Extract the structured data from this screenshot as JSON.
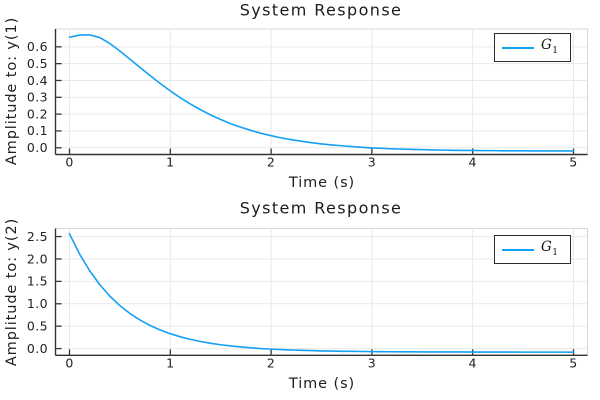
{
  "colors": {
    "background": "#ffffff",
    "series": "#14a0f6",
    "grid": "#e9e9e9",
    "frame": "#d6d6d6",
    "spine": "#333333",
    "tick_text": "#232323",
    "legend_border": "#2d2d2d"
  },
  "chart_data": [
    {
      "type": "line",
      "title": "System Response",
      "xlabel": "Time (s)",
      "ylabel": "Amplitude to: y(1)",
      "legend": {
        "main": "G",
        "sub": "1"
      },
      "legend_position": "top-right",
      "grid": true,
      "xlim": [
        -0.139,
        5.139
      ],
      "ylim": [
        -0.04,
        0.706
      ],
      "xticks": [
        0,
        1,
        2,
        3,
        4,
        5
      ],
      "xtick_labels": [
        "0",
        "1",
        "2",
        "3",
        "4",
        "5"
      ],
      "yticks": [
        0.0,
        0.1,
        0.2,
        0.3,
        0.4,
        0.5,
        0.6
      ],
      "ytick_labels": [
        "0.0",
        "0.1",
        "0.2",
        "0.3",
        "0.4",
        "0.5",
        "0.6"
      ],
      "x": [
        0,
        0.1,
        0.2,
        0.3,
        0.4,
        0.5,
        0.6,
        0.7,
        0.8,
        0.9,
        1,
        1.1,
        1.2,
        1.3,
        1.4,
        1.5,
        1.6,
        1.7,
        1.8,
        1.9,
        2,
        2.1,
        2.2,
        2.3,
        2.4,
        2.5,
        2.6,
        2.7,
        2.8,
        2.9,
        3,
        3.1,
        3.2,
        3.3,
        3.4,
        3.5,
        3.6,
        3.7,
        3.8,
        3.9,
        4,
        4.1,
        4.2,
        4.3,
        4.4,
        4.5,
        4.6,
        4.7,
        4.8,
        4.9,
        5
      ],
      "series": [
        {
          "name": "G_1",
          "values": [
            0.657,
            0.67,
            0.671,
            0.655,
            0.62,
            0.575,
            0.526,
            0.477,
            0.429,
            0.382,
            0.338,
            0.297,
            0.26,
            0.226,
            0.195,
            0.168,
            0.143,
            0.122,
            0.103,
            0.086,
            0.072,
            0.059,
            0.048,
            0.039,
            0.03,
            0.023,
            0.017,
            0.012,
            0.007,
            0.003,
            -0.001,
            -0.003,
            -0.006,
            -0.008,
            -0.01,
            -0.011,
            -0.013,
            -0.014,
            -0.015,
            -0.016,
            -0.016,
            -0.017,
            -0.017,
            -0.018,
            -0.018,
            -0.018,
            -0.019,
            -0.019,
            -0.019,
            -0.019,
            -0.019
          ]
        }
      ]
    },
    {
      "type": "line",
      "title": "System Response",
      "xlabel": "Time (s)",
      "ylabel": "Amplitude to: y(2)",
      "legend": {
        "main": "G",
        "sub": "1"
      },
      "legend_position": "top-right",
      "grid": true,
      "xlim": [
        -0.139,
        5.139
      ],
      "ylim": [
        -0.15,
        2.68
      ],
      "xticks": [
        0,
        1,
        2,
        3,
        4,
        5
      ],
      "xtick_labels": [
        "0",
        "1",
        "2",
        "3",
        "4",
        "5"
      ],
      "yticks": [
        0.0,
        0.5,
        1.0,
        1.5,
        2.0,
        2.5
      ],
      "ytick_labels": [
        "0.0",
        "0.5",
        "1.0",
        "1.5",
        "2.0",
        "2.5"
      ],
      "x": [
        0,
        0.1,
        0.2,
        0.3,
        0.4,
        0.5,
        0.6,
        0.7,
        0.8,
        0.9,
        1,
        1.1,
        1.2,
        1.3,
        1.4,
        1.5,
        1.6,
        1.7,
        1.8,
        1.9,
        2,
        2.1,
        2.2,
        2.3,
        2.4,
        2.5,
        2.6,
        2.7,
        2.8,
        2.9,
        3,
        3.1,
        3.2,
        3.3,
        3.4,
        3.5,
        3.6,
        3.7,
        3.8,
        3.9,
        4,
        4.1,
        4.2,
        4.3,
        4.4,
        4.5,
        4.6,
        4.7,
        4.8,
        4.9,
        5
      ],
      "series": [
        {
          "name": "G_1",
          "values": [
            2.56,
            2.109,
            1.737,
            1.427,
            1.171,
            0.958,
            0.782,
            0.637,
            0.515,
            0.415,
            0.332,
            0.263,
            0.206,
            0.158,
            0.118,
            0.086,
            0.058,
            0.036,
            0.017,
            0.001,
            -0.012,
            -0.022,
            -0.032,
            -0.039,
            -0.045,
            -0.052,
            -0.056,
            -0.06,
            -0.062,
            -0.065,
            -0.068,
            -0.07,
            -0.071,
            -0.073,
            -0.073,
            -0.074,
            -0.075,
            -0.075,
            -0.076,
            -0.076,
            -0.077,
            -0.077,
            -0.078,
            -0.078,
            -0.078,
            -0.079,
            -0.079,
            -0.079,
            -0.079,
            -0.079,
            -0.08
          ]
        }
      ]
    }
  ]
}
